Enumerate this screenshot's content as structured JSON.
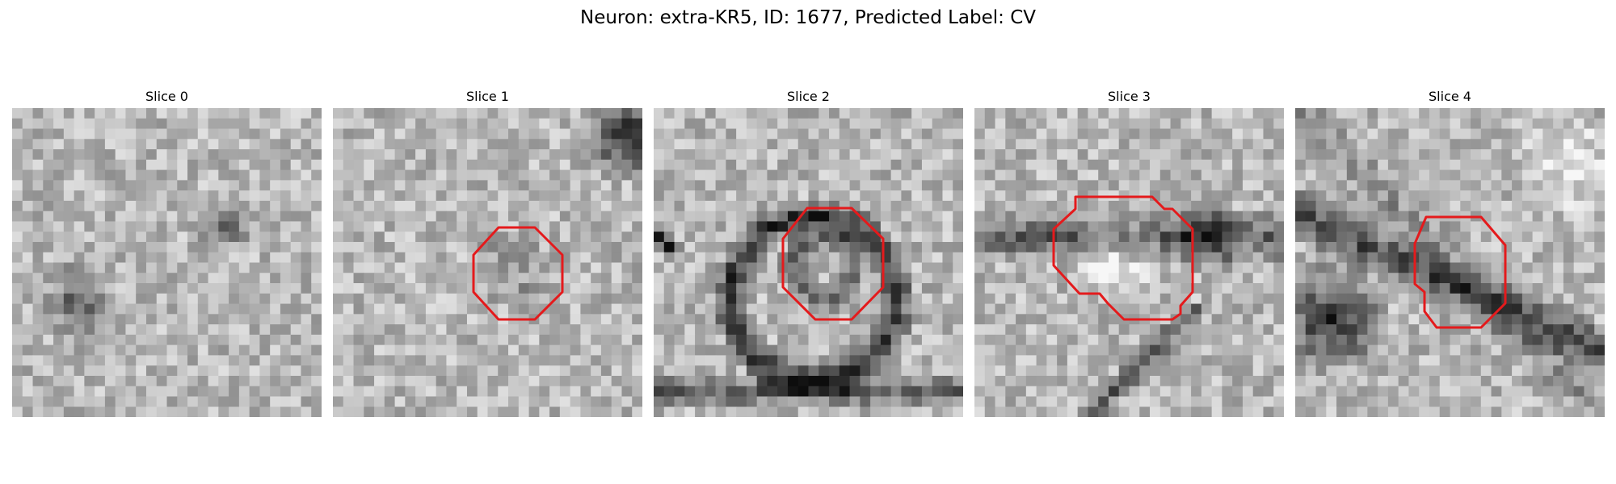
{
  "figure": {
    "title": "Neuron: extra-KR5, ID: 1677, Predicted Label: CV"
  },
  "panels": [
    {
      "title": "Slice 0",
      "has_contour": false
    },
    {
      "title": "Slice 1",
      "has_contour": true
    },
    {
      "title": "Slice 2",
      "has_contour": true
    },
    {
      "title": "Slice 3",
      "has_contour": true
    },
    {
      "title": "Slice 4",
      "has_contour": true
    }
  ],
  "colors": {
    "contour": "#e41a1c",
    "background": "#ffffff"
  },
  "colormap": "gray"
}
